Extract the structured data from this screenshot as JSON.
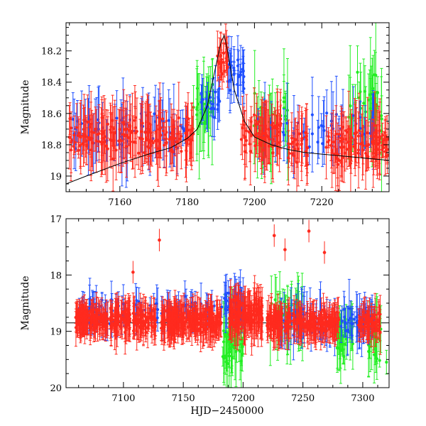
{
  "chart_data": [
    {
      "type": "scatter",
      "panel": "top",
      "title": "",
      "xlabel": "",
      "ylabel": "Magnitude",
      "xlim": [
        7144,
        7240
      ],
      "ylim": [
        19.1,
        18.02
      ],
      "y_inverted": true,
      "xticks": [
        7160,
        7180,
        7200,
        7220
      ],
      "yticks": [
        18.2,
        18.4,
        18.6,
        18.8,
        19
      ],
      "ytick_labels": [
        "18.2",
        "18.4",
        "18.6",
        "18.8",
        "19"
      ],
      "series_colors": {
        "red": "#ff2a1e",
        "blue": "#1f4fff",
        "green": "#22ee22",
        "model": "#000000"
      },
      "series": [
        {
          "name": "red",
          "segments": [
            {
              "x": [
                7145,
                7182
              ],
              "center": 18.75,
              "spread": 0.18,
              "n": 180
            },
            {
              "x": [
                7189,
                7192
              ],
              "center": 18.25,
              "spread": 0.12,
              "n": 25
            },
            {
              "x": [
                7196,
                7208
              ],
              "center": 18.72,
              "spread": 0.18,
              "n": 70
            },
            {
              "x": [
                7210,
                7216
              ],
              "center": 18.8,
              "spread": 0.18,
              "n": 30
            },
            {
              "x": [
                7221,
                7240
              ],
              "center": 18.8,
              "spread": 0.18,
              "n": 100
            }
          ]
        },
        {
          "name": "blue",
          "segments": [
            {
              "x": [
                7146,
                7180
              ],
              "center": 18.7,
              "spread": 0.2,
              "n": 60
            },
            {
              "x": [
                7184,
                7190
              ],
              "center": 18.55,
              "spread": 0.15,
              "n": 20
            },
            {
              "x": [
                7192,
                7197
              ],
              "center": 18.35,
              "spread": 0.15,
              "n": 25
            },
            {
              "x": [
                7201,
                7238
              ],
              "center": 18.7,
              "spread": 0.2,
              "n": 50
            }
          ]
        },
        {
          "name": "green",
          "segments": [
            {
              "x": [
                7181,
                7189
              ],
              "center": 18.55,
              "spread": 0.25,
              "n": 25
            },
            {
              "x": [
                7199,
                7210
              ],
              "center": 18.65,
              "spread": 0.25,
              "n": 25
            },
            {
              "x": [
                7228,
                7238
              ],
              "center": 18.55,
              "spread": 0.3,
              "n": 35
            }
          ]
        }
      ],
      "model_curve": {
        "x": [
          7144,
          7150,
          7160,
          7170,
          7175,
          7180,
          7183,
          7186,
          7188,
          7190,
          7191,
          7192,
          7194,
          7197,
          7200,
          7205,
          7210,
          7215,
          7220,
          7225,
          7230,
          7240
        ],
        "y": [
          19.05,
          19.0,
          18.92,
          18.85,
          18.82,
          18.76,
          18.7,
          18.55,
          18.35,
          18.15,
          18.1,
          18.2,
          18.45,
          18.65,
          18.75,
          18.8,
          18.83,
          18.85,
          18.86,
          18.87,
          18.88,
          18.9
        ]
      }
    },
    {
      "type": "scatter",
      "panel": "bottom",
      "title": "",
      "xlabel": "HJD−2450000",
      "ylabel": "Magnitude",
      "xlim": [
        7052,
        7322
      ],
      "ylim": [
        20,
        17
      ],
      "y_inverted": true,
      "xticks": [
        7100,
        7150,
        7200,
        7250,
        7300
      ],
      "yticks": [
        17,
        18,
        19,
        20
      ],
      "ytick_labels": [
        "17",
        "18",
        "19",
        "20"
      ],
      "reference_line": 18.85,
      "series_colors": {
        "red": "#ff2a1e",
        "blue": "#1f4fff",
        "green": "#22ee22"
      },
      "series": [
        {
          "name": "red",
          "segments": [
            {
              "x": [
                7060,
                7087
              ],
              "center": 18.8,
              "spread": 0.25,
              "n": 140
            },
            {
              "x": [
                7089,
                7106
              ],
              "center": 18.8,
              "spread": 0.3,
              "n": 70
            },
            {
              "x": [
                7108,
                7127
              ],
              "center": 18.8,
              "spread": 0.28,
              "n": 70
            },
            {
              "x": [
                7131,
                7182
              ],
              "center": 18.82,
              "spread": 0.3,
              "n": 230
            },
            {
              "x": [
                7188,
                7216
              ],
              "center": 18.7,
              "spread": 0.35,
              "n": 130
            },
            {
              "x": [
                7220,
                7240
              ],
              "center": 18.85,
              "spread": 0.3,
              "n": 90
            },
            {
              "x": [
                7242,
                7280
              ],
              "center": 18.85,
              "spread": 0.28,
              "n": 140
            },
            {
              "x": [
                7296,
                7315
              ],
              "center": 18.85,
              "spread": 0.3,
              "n": 60
            }
          ]
        },
        {
          "name": "blue",
          "segments": [
            {
              "x": [
                7063,
                7102
              ],
              "center": 18.65,
              "spread": 0.3,
              "n": 45
            },
            {
              "x": [
                7110,
                7178
              ],
              "center": 18.62,
              "spread": 0.3,
              "n": 50
            },
            {
              "x": [
                7182,
                7200
              ],
              "center": 18.5,
              "spread": 0.35,
              "n": 35
            },
            {
              "x": [
                7228,
                7300
              ],
              "center": 18.85,
              "spread": 0.4,
              "n": 80
            },
            {
              "x": [
                7300,
                7310
              ],
              "center": 18.8,
              "spread": 0.3,
              "n": 20
            }
          ]
        },
        {
          "name": "green",
          "segments": [
            {
              "x": [
                7183,
                7200
              ],
              "center": 19.2,
              "spread": 0.55,
              "n": 45
            },
            {
              "x": [
                7222,
                7250
              ],
              "center": 18.7,
              "spread": 0.5,
              "n": 40
            },
            {
              "x": [
                7278,
                7292
              ],
              "center": 19.1,
              "spread": 0.45,
              "n": 30
            },
            {
              "x": [
                7304,
                7320
              ],
              "center": 19.2,
              "spread": 0.45,
              "n": 25
            }
          ]
        }
      ],
      "outliers": [
        {
          "x": 7226,
          "y": 17.3
        },
        {
          "x": 7268,
          "y": 17.6
        },
        {
          "x": 7108,
          "y": 17.95
        },
        {
          "x": 7130,
          "y": 17.38
        },
        {
          "x": 7235,
          "y": 17.55
        },
        {
          "x": 7255,
          "y": 17.22
        }
      ]
    }
  ]
}
